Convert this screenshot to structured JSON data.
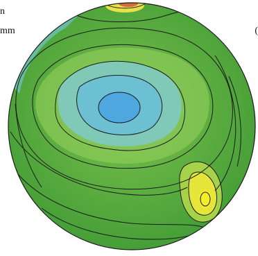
{
  "labels": {
    "left_top": "n",
    "left_bottom": "mm",
    "right_edge": "("
  },
  "colors": {
    "background": "#ffffff",
    "green": "#4fae3c",
    "green_light": "#7cc24d",
    "cyan": "#74c6c8",
    "blue": "#56aee0",
    "yellow": "#f2ec39",
    "contour": "#1a1a1a"
  }
}
